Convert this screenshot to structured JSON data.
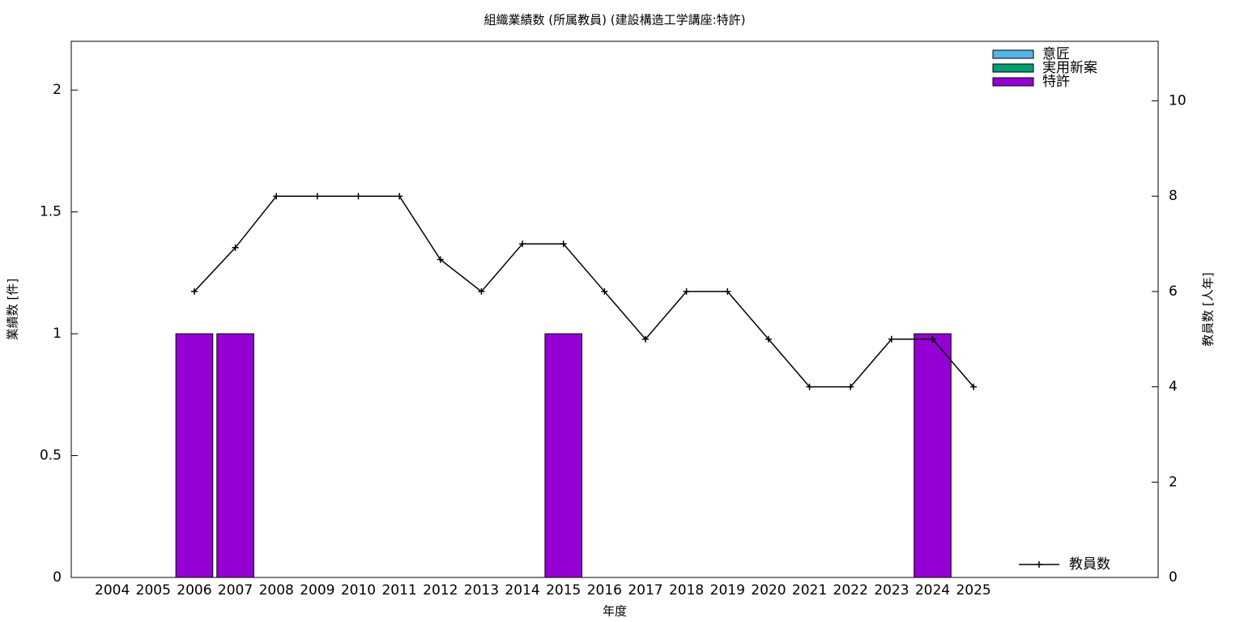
{
  "chart_data": {
    "type": "bar",
    "title": "組織業績数 (所属教員) (建設構造工学講座:特許)",
    "x_label": "年度",
    "y_label": "業績数 [件]",
    "y2_label": "教員数 [人年]",
    "categories": [
      "2004",
      "2005",
      "2006",
      "2007",
      "2008",
      "2009",
      "2010",
      "2011",
      "2012",
      "2013",
      "2014",
      "2015",
      "2016",
      "2017",
      "2018",
      "2019",
      "2020",
      "2021",
      "2022",
      "2023",
      "2024",
      "2025"
    ],
    "stacked": true,
    "legend": "upper right",
    "series": [
      {
        "name": "意匠",
        "color": "#56b4e9",
        "values": [
          0,
          0,
          0,
          0,
          0,
          0,
          0,
          0,
          0,
          0,
          0,
          0,
          0,
          0,
          0,
          0,
          0,
          0,
          0,
          0,
          0,
          0
        ]
      },
      {
        "name": "実用新案",
        "color": "#009e73",
        "values": [
          0,
          0,
          0,
          0,
          0,
          0,
          0,
          0,
          0,
          0,
          0,
          0,
          0,
          0,
          0,
          0,
          0,
          0,
          0,
          0,
          0,
          0
        ]
      },
      {
        "name": "特許",
        "color": "#9400d3",
        "values": [
          0,
          0,
          1,
          1,
          0,
          0,
          0,
          0,
          0,
          0,
          0,
          1,
          0,
          0,
          0,
          0,
          0,
          0,
          0,
          0,
          1,
          0
        ]
      },
      {
        "name": "教員数",
        "color": "#000000",
        "type": "line",
        "axis": "y2",
        "values": [
          null,
          null,
          6,
          6.92,
          8,
          8,
          8,
          8,
          6.67,
          6,
          7,
          7,
          6,
          5,
          6,
          6,
          5,
          4,
          4,
          5,
          5,
          4
        ]
      }
    ],
    "ylim": [
      0,
      2.2
    ],
    "yticks": [
      0,
      0.5,
      1,
      1.5,
      2
    ],
    "y2lim": [
      0,
      11.25
    ],
    "y2ticks": [
      0,
      2,
      4,
      6,
      8,
      10
    ]
  }
}
